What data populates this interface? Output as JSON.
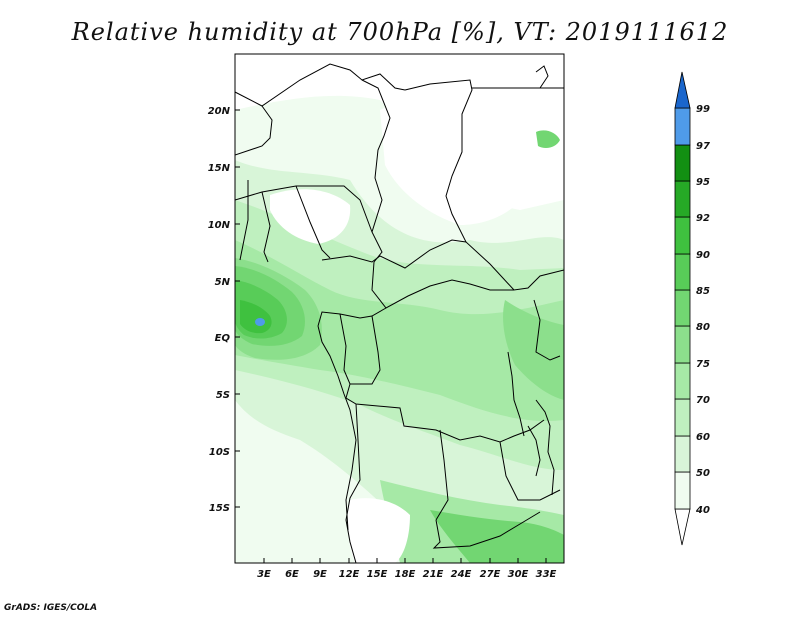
{
  "title": "Relative humidity at 700hPa [%], VT: 2019111612",
  "footer": "GrADS: IGES/COLA",
  "map": {
    "lat_labels": [
      "20N",
      "15N",
      "10N",
      "5N",
      "EQ",
      "5S",
      "10S",
      "15S"
    ],
    "lon_labels": [
      "3E",
      "6E",
      "9E",
      "12E",
      "15E",
      "18E",
      "21E",
      "24E",
      "27E",
      "30E",
      "33E"
    ]
  },
  "colorbar": {
    "levels": [
      "40",
      "50",
      "60",
      "70",
      "75",
      "80",
      "85",
      "90",
      "92",
      "95",
      "97",
      "99"
    ],
    "colors": {
      "c40": "#f0fcf0",
      "c50": "#d8f5d8",
      "c60": "#bff0bf",
      "c70": "#a6e9a6",
      "c75": "#8cdf8c",
      "c80": "#72d672",
      "c85": "#58cc58",
      "c90": "#3fc13f",
      "c92": "#26a926",
      "c95": "#128f12",
      "c97": "#4f9be9",
      "c99": "#1a66cc"
    }
  }
}
